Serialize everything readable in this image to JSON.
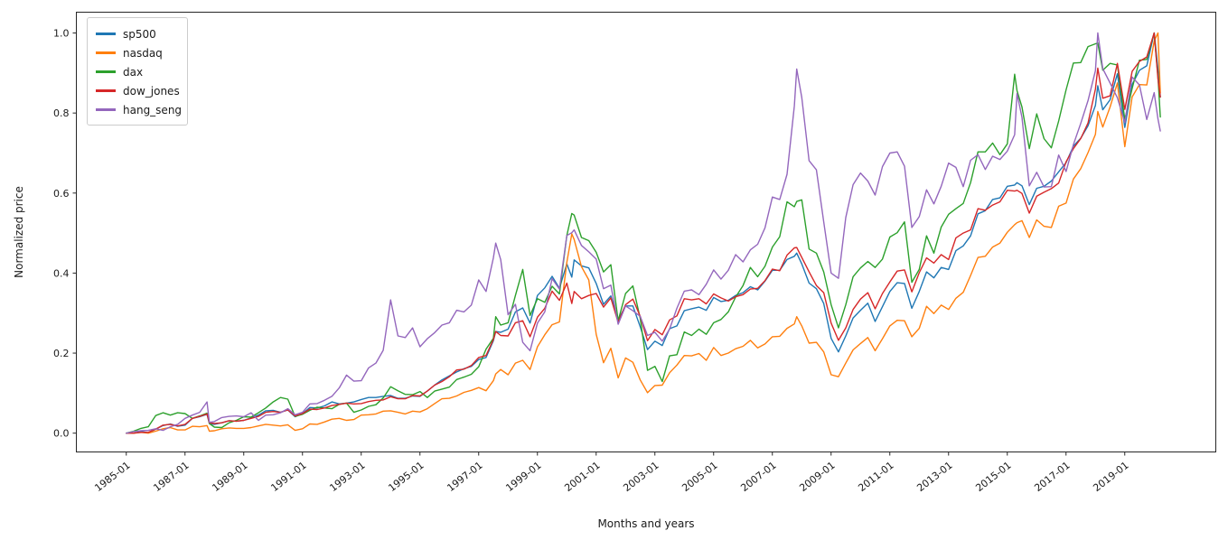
{
  "chart_data": {
    "type": "line",
    "title": "",
    "xlabel": "Months and years",
    "ylabel": "Normalized price",
    "grid": false,
    "legend_position": "upper-left",
    "background_color": "#ffffff",
    "axis_color": "#262626",
    "xlim": [
      1983.3,
      2022.1
    ],
    "ylim": [
      -0.047,
      1.052
    ],
    "x_tick_positions": [
      1985,
      1987,
      1989,
      1991,
      1993,
      1995,
      1997,
      1999,
      2001,
      2003,
      2005,
      2007,
      2009,
      2011,
      2013,
      2015,
      2017,
      2019
    ],
    "x_tick_labels": [
      "1985-01",
      "1987-01",
      "1989-01",
      "1991-01",
      "1993-01",
      "1995-01",
      "1997-01",
      "1999-01",
      "2001-01",
      "2003-01",
      "2005-01",
      "2007-01",
      "2009-01",
      "2011-01",
      "2013-01",
      "2015-01",
      "2017-01",
      "2019-01"
    ],
    "y_tick_positions": [
      0.0,
      0.2,
      0.4,
      0.6,
      0.8,
      1.0
    ],
    "y_tick_labels": [
      "0.0",
      "0.2",
      "0.4",
      "0.6",
      "0.8",
      "1.0"
    ],
    "x": [
      1985.0,
      1985.25,
      1985.5,
      1985.75,
      1986.0,
      1986.25,
      1986.5,
      1986.75,
      1987.0,
      1987.25,
      1987.5,
      1987.75,
      1987.83,
      1988.0,
      1988.25,
      1988.5,
      1988.75,
      1989.0,
      1989.25,
      1989.5,
      1989.75,
      1990.0,
      1990.25,
      1990.5,
      1990.75,
      1991.0,
      1991.25,
      1991.5,
      1991.75,
      1992.0,
      1992.25,
      1992.5,
      1992.75,
      1993.0,
      1993.25,
      1993.5,
      1993.75,
      1994.0,
      1994.25,
      1994.5,
      1994.75,
      1995.0,
      1995.25,
      1995.5,
      1995.75,
      1996.0,
      1996.25,
      1996.5,
      1996.75,
      1997.0,
      1997.25,
      1997.5,
      1997.58,
      1997.75,
      1998.0,
      1998.25,
      1998.5,
      1998.75,
      1999.0,
      1999.25,
      1999.5,
      1999.75,
      2000.0,
      2000.17,
      2000.25,
      2000.5,
      2000.75,
      2001.0,
      2001.25,
      2001.5,
      2001.75,
      2002.0,
      2002.25,
      2002.5,
      2002.75,
      2003.0,
      2003.25,
      2003.5,
      2003.75,
      2004.0,
      2004.25,
      2004.5,
      2004.75,
      2005.0,
      2005.25,
      2005.5,
      2005.75,
      2006.0,
      2006.25,
      2006.5,
      2006.75,
      2007.0,
      2007.25,
      2007.5,
      2007.75,
      2007.83,
      2008.0,
      2008.25,
      2008.5,
      2008.75,
      2009.0,
      2009.25,
      2009.5,
      2009.75,
      2010.0,
      2010.25,
      2010.5,
      2010.75,
      2011.0,
      2011.25,
      2011.5,
      2011.75,
      2012.0,
      2012.25,
      2012.5,
      2012.75,
      2013.0,
      2013.25,
      2013.5,
      2013.75,
      2014.0,
      2014.25,
      2014.5,
      2014.75,
      2015.0,
      2015.25,
      2015.33,
      2015.5,
      2015.75,
      2016.0,
      2016.25,
      2016.5,
      2016.75,
      2017.0,
      2017.25,
      2017.5,
      2017.75,
      2018.0,
      2018.08,
      2018.25,
      2018.5,
      2018.75,
      2019.0,
      2019.25,
      2019.5,
      2019.75,
      2020.0,
      2020.13,
      2020.21
    ],
    "series": [
      {
        "name": "sp500",
        "color": "#1f77b4",
        "values": [
          0.0,
          0.0,
          0.004,
          0.001,
          0.01,
          0.019,
          0.023,
          0.017,
          0.02,
          0.037,
          0.041,
          0.047,
          0.024,
          0.022,
          0.026,
          0.031,
          0.03,
          0.032,
          0.038,
          0.045,
          0.056,
          0.057,
          0.052,
          0.058,
          0.041,
          0.049,
          0.064,
          0.063,
          0.068,
          0.078,
          0.073,
          0.075,
          0.078,
          0.084,
          0.089,
          0.089,
          0.092,
          0.094,
          0.087,
          0.087,
          0.093,
          0.092,
          0.105,
          0.12,
          0.133,
          0.143,
          0.153,
          0.161,
          0.167,
          0.184,
          0.189,
          0.231,
          0.254,
          0.252,
          0.26,
          0.303,
          0.313,
          0.275,
          0.344,
          0.363,
          0.392,
          0.362,
          0.423,
          0.39,
          0.433,
          0.418,
          0.413,
          0.374,
          0.322,
          0.343,
          0.283,
          0.318,
          0.318,
          0.266,
          0.209,
          0.23,
          0.219,
          0.261,
          0.268,
          0.306,
          0.311,
          0.315,
          0.307,
          0.339,
          0.329,
          0.332,
          0.344,
          0.351,
          0.366,
          0.358,
          0.38,
          0.407,
          0.407,
          0.434,
          0.442,
          0.45,
          0.423,
          0.375,
          0.361,
          0.324,
          0.237,
          0.203,
          0.243,
          0.288,
          0.307,
          0.325,
          0.279,
          0.316,
          0.354,
          0.376,
          0.374,
          0.312,
          0.354,
          0.403,
          0.388,
          0.414,
          0.409,
          0.456,
          0.468,
          0.493,
          0.548,
          0.556,
          0.584,
          0.588,
          0.617,
          0.62,
          0.626,
          0.618,
          0.571,
          0.612,
          0.617,
          0.63,
          0.653,
          0.676,
          0.717,
          0.737,
          0.768,
          0.819,
          0.868,
          0.808,
          0.833,
          0.898,
          0.764,
          0.871,
          0.907,
          0.918,
          1.0,
          0.91,
          0.84
        ]
      },
      {
        "name": "nasdaq",
        "color": "#ff7f0e",
        "values": [
          0.0,
          0.0,
          0.002,
          0.0,
          0.005,
          0.011,
          0.014,
          0.008,
          0.008,
          0.017,
          0.016,
          0.019,
          0.005,
          0.006,
          0.011,
          0.013,
          0.012,
          0.012,
          0.014,
          0.018,
          0.022,
          0.02,
          0.018,
          0.021,
          0.007,
          0.011,
          0.023,
          0.022,
          0.028,
          0.035,
          0.037,
          0.032,
          0.034,
          0.045,
          0.046,
          0.048,
          0.055,
          0.056,
          0.052,
          0.048,
          0.055,
          0.053,
          0.061,
          0.074,
          0.086,
          0.087,
          0.093,
          0.102,
          0.107,
          0.114,
          0.106,
          0.131,
          0.148,
          0.159,
          0.146,
          0.175,
          0.182,
          0.159,
          0.216,
          0.246,
          0.271,
          0.278,
          0.427,
          0.498,
          0.484,
          0.416,
          0.383,
          0.247,
          0.176,
          0.212,
          0.138,
          0.188,
          0.177,
          0.133,
          0.101,
          0.119,
          0.12,
          0.151,
          0.17,
          0.194,
          0.193,
          0.199,
          0.182,
          0.214,
          0.194,
          0.2,
          0.211,
          0.217,
          0.232,
          0.213,
          0.223,
          0.241,
          0.242,
          0.262,
          0.273,
          0.291,
          0.268,
          0.225,
          0.227,
          0.203,
          0.146,
          0.141,
          0.175,
          0.208,
          0.224,
          0.239,
          0.206,
          0.236,
          0.268,
          0.282,
          0.281,
          0.241,
          0.262,
          0.317,
          0.299,
          0.32,
          0.309,
          0.337,
          0.352,
          0.394,
          0.439,
          0.442,
          0.465,
          0.475,
          0.502,
          0.521,
          0.526,
          0.531,
          0.489,
          0.533,
          0.517,
          0.514,
          0.567,
          0.575,
          0.635,
          0.661,
          0.701,
          0.747,
          0.804,
          0.765,
          0.815,
          0.875,
          0.716,
          0.84,
          0.871,
          0.87,
          0.98,
          1.0,
          0.85
        ]
      },
      {
        "name": "dax",
        "color": "#2ca02c",
        "values": [
          0.0,
          0.005,
          0.012,
          0.016,
          0.044,
          0.051,
          0.045,
          0.051,
          0.049,
          0.037,
          0.043,
          0.05,
          0.024,
          0.015,
          0.014,
          0.026,
          0.032,
          0.041,
          0.04,
          0.051,
          0.063,
          0.078,
          0.089,
          0.085,
          0.042,
          0.047,
          0.057,
          0.065,
          0.063,
          0.061,
          0.072,
          0.075,
          0.052,
          0.058,
          0.067,
          0.071,
          0.088,
          0.116,
          0.106,
          0.097,
          0.096,
          0.104,
          0.089,
          0.105,
          0.11,
          0.115,
          0.134,
          0.14,
          0.147,
          0.166,
          0.21,
          0.237,
          0.291,
          0.27,
          0.276,
          0.344,
          0.409,
          0.294,
          0.336,
          0.327,
          0.367,
          0.348,
          0.494,
          0.549,
          0.545,
          0.489,
          0.481,
          0.452,
          0.403,
          0.421,
          0.281,
          0.349,
          0.368,
          0.287,
          0.157,
          0.167,
          0.129,
          0.193,
          0.196,
          0.253,
          0.244,
          0.26,
          0.247,
          0.276,
          0.284,
          0.303,
          0.34,
          0.369,
          0.414,
          0.391,
          0.417,
          0.465,
          0.491,
          0.578,
          0.566,
          0.579,
          0.583,
          0.46,
          0.45,
          0.403,
          0.321,
          0.263,
          0.321,
          0.391,
          0.413,
          0.429,
          0.414,
          0.435,
          0.49,
          0.501,
          0.528,
          0.377,
          0.409,
          0.493,
          0.45,
          0.515,
          0.547,
          0.561,
          0.574,
          0.626,
          0.703,
          0.703,
          0.725,
          0.696,
          0.723,
          0.897,
          0.856,
          0.815,
          0.711,
          0.798,
          0.736,
          0.713,
          0.78,
          0.858,
          0.925,
          0.926,
          0.966,
          0.973,
          0.975,
          0.907,
          0.924,
          0.92,
          0.784,
          0.861,
          0.932,
          0.934,
          1.0,
          0.891,
          0.79
        ]
      },
      {
        "name": "dow_jones",
        "color": "#d62728",
        "values": [
          0.0,
          0.0,
          0.002,
          0.002,
          0.01,
          0.02,
          0.022,
          0.018,
          0.022,
          0.037,
          0.042,
          0.048,
          0.026,
          0.024,
          0.026,
          0.031,
          0.03,
          0.032,
          0.037,
          0.042,
          0.052,
          0.054,
          0.052,
          0.058,
          0.043,
          0.049,
          0.06,
          0.059,
          0.063,
          0.069,
          0.072,
          0.075,
          0.073,
          0.074,
          0.079,
          0.082,
          0.083,
          0.091,
          0.086,
          0.086,
          0.094,
          0.093,
          0.105,
          0.12,
          0.129,
          0.141,
          0.158,
          0.16,
          0.169,
          0.189,
          0.194,
          0.234,
          0.254,
          0.244,
          0.243,
          0.276,
          0.281,
          0.241,
          0.29,
          0.312,
          0.355,
          0.332,
          0.375,
          0.324,
          0.354,
          0.336,
          0.344,
          0.349,
          0.315,
          0.338,
          0.277,
          0.321,
          0.335,
          0.292,
          0.231,
          0.259,
          0.246,
          0.283,
          0.293,
          0.336,
          0.333,
          0.336,
          0.323,
          0.348,
          0.338,
          0.33,
          0.341,
          0.346,
          0.36,
          0.362,
          0.381,
          0.41,
          0.406,
          0.445,
          0.463,
          0.464,
          0.439,
          0.403,
          0.369,
          0.351,
          0.275,
          0.232,
          0.263,
          0.309,
          0.335,
          0.351,
          0.311,
          0.349,
          0.378,
          0.405,
          0.408,
          0.353,
          0.401,
          0.438,
          0.425,
          0.446,
          0.434,
          0.488,
          0.5,
          0.508,
          0.561,
          0.557,
          0.57,
          0.578,
          0.607,
          0.605,
          0.607,
          0.599,
          0.55,
          0.592,
          0.602,
          0.611,
          0.625,
          0.678,
          0.711,
          0.736,
          0.775,
          0.86,
          0.912,
          0.837,
          0.843,
          0.924,
          0.809,
          0.904,
          0.929,
          0.94,
          1.0,
          0.885,
          0.84
        ]
      },
      {
        "name": "hang_seng",
        "color": "#9467bd",
        "values": [
          0.0,
          0.004,
          0.006,
          0.007,
          0.011,
          0.007,
          0.016,
          0.022,
          0.037,
          0.045,
          0.052,
          0.078,
          0.027,
          0.029,
          0.039,
          0.042,
          0.043,
          0.041,
          0.051,
          0.032,
          0.045,
          0.046,
          0.051,
          0.061,
          0.046,
          0.052,
          0.073,
          0.074,
          0.082,
          0.092,
          0.113,
          0.145,
          0.13,
          0.131,
          0.163,
          0.175,
          0.207,
          0.333,
          0.243,
          0.239,
          0.263,
          0.216,
          0.236,
          0.251,
          0.27,
          0.276,
          0.307,
          0.303,
          0.32,
          0.383,
          0.354,
          0.438,
          0.475,
          0.434,
          0.296,
          0.322,
          0.227,
          0.206,
          0.275,
          0.303,
          0.386,
          0.36,
          0.494,
          0.501,
          0.508,
          0.469,
          0.453,
          0.435,
          0.361,
          0.37,
          0.272,
          0.318,
          0.306,
          0.292,
          0.244,
          0.252,
          0.23,
          0.26,
          0.312,
          0.355,
          0.358,
          0.346,
          0.372,
          0.408,
          0.385,
          0.407,
          0.446,
          0.428,
          0.458,
          0.472,
          0.513,
          0.59,
          0.584,
          0.647,
          0.818,
          0.91,
          0.839,
          0.681,
          0.658,
          0.528,
          0.4,
          0.387,
          0.539,
          0.621,
          0.65,
          0.63,
          0.595,
          0.666,
          0.7,
          0.703,
          0.667,
          0.514,
          0.541,
          0.608,
          0.573,
          0.617,
          0.675,
          0.664,
          0.616,
          0.682,
          0.696,
          0.659,
          0.692,
          0.684,
          0.705,
          0.746,
          0.849,
          0.789,
          0.618,
          0.652,
          0.615,
          0.616,
          0.695,
          0.654,
          0.721,
          0.774,
          0.831,
          0.906,
          1.0,
          0.911,
          0.875,
          0.838,
          0.776,
          0.89,
          0.87,
          0.784,
          0.851,
          0.785,
          0.755
        ]
      }
    ]
  }
}
